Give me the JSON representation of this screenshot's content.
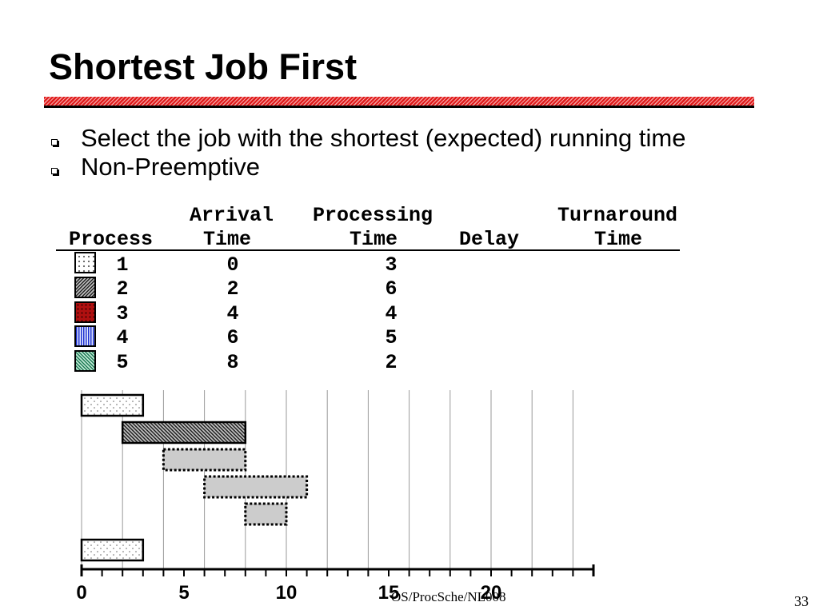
{
  "slide": {
    "title": "Shortest Job First",
    "bullets": [
      "Select the job with the shortest (expected) running time",
      "Non-Preemptive"
    ],
    "footer": "OS/ProcSche/NL008",
    "page_number": "33"
  },
  "table": {
    "header_top": {
      "arrival": "Arrival",
      "processing": "Processing",
      "turnaround": "Turnaround"
    },
    "header_bottom": {
      "process": "Process",
      "arrival": "Time",
      "processing": "Time",
      "delay": "Delay",
      "turnaround": "Time"
    },
    "rows": [
      {
        "process": "1",
        "arrival": "0",
        "processing": "3",
        "pattern": "dotted-white"
      },
      {
        "process": "2",
        "arrival": "2",
        "processing": "6",
        "pattern": "gray-hatch"
      },
      {
        "process": "3",
        "arrival": "4",
        "processing": "4",
        "pattern": "red-dots"
      },
      {
        "process": "4",
        "arrival": "6",
        "processing": "5",
        "pattern": "blue-vlines"
      },
      {
        "process": "5",
        "arrival": "8",
        "processing": "2",
        "pattern": "green-hatch"
      }
    ]
  },
  "chart_data": {
    "type": "bar",
    "orientation": "horizontal",
    "xlim": [
      0,
      25
    ],
    "x_tick_labels": [
      "0",
      "5",
      "10",
      "15",
      "20"
    ],
    "minor_tick_step": 1,
    "grid": true,
    "grid_step": 2,
    "bars": [
      {
        "start": 0,
        "end": 3,
        "pattern": "dotted-white",
        "outline": "solid"
      },
      {
        "start": 2,
        "end": 8,
        "pattern": "gray-hatch",
        "outline": "solid"
      },
      {
        "start": 4,
        "end": 8,
        "pattern": "gray",
        "outline": "dotted"
      },
      {
        "start": 6,
        "end": 11,
        "pattern": "gray",
        "outline": "dotted"
      },
      {
        "start": 8,
        "end": 10,
        "pattern": "gray",
        "outline": "dotted"
      },
      {
        "start": 0,
        "end": 3,
        "pattern": "dotted-white",
        "outline": "solid"
      }
    ]
  },
  "colors": {
    "rule_red": "#e01b1b"
  }
}
